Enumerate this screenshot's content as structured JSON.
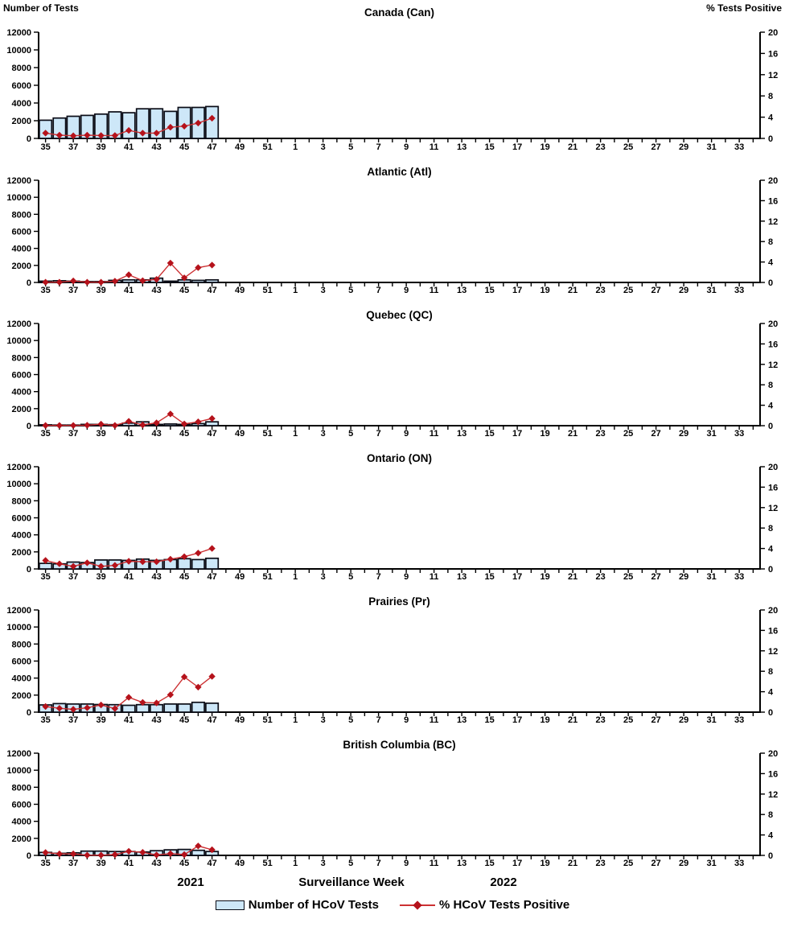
{
  "header": {
    "left_axis_title": "Number of Tests",
    "right_axis_title": "% Tests Positive"
  },
  "footer": {
    "year_left": "2021",
    "x_axis_label": "Surveillance Week",
    "year_right": "2022",
    "legend": [
      {
        "label": "Number of HCoV Tests",
        "type": "bar"
      },
      {
        "label": "% HCoV Tests Positive",
        "type": "line"
      }
    ]
  },
  "colors": {
    "bar_fill": "#cde7f8",
    "bar_border": "#0a0c16",
    "line": "#cc3133",
    "marker": "#b5121b",
    "axis": "#000000"
  },
  "axes": {
    "x": {
      "slots": 52,
      "tick_labels": [
        "35",
        "37",
        "39",
        "41",
        "43",
        "45",
        "47",
        "49",
        "51",
        "1",
        "3",
        "5",
        "7",
        "9",
        "11",
        "13",
        "15",
        "17",
        "19",
        "21",
        "23",
        "25",
        "27",
        "29",
        "31",
        "33"
      ],
      "label_slot_positions": [
        0,
        2,
        4,
        6,
        8,
        10,
        12,
        14,
        16,
        18,
        20,
        22,
        24,
        26,
        28,
        30,
        32,
        34,
        36,
        38,
        40,
        42,
        44,
        46,
        48,
        50
      ]
    },
    "y_left": {
      "min": 0,
      "max": 12000,
      "ticks": [
        0,
        2000,
        4000,
        6000,
        8000,
        10000,
        12000
      ]
    },
    "y_right": {
      "min": 0,
      "max": 20,
      "ticks": [
        0,
        4,
        8,
        12,
        16,
        20
      ]
    }
  },
  "chart_data": [
    {
      "type": "bar",
      "title": "Canada (Can)",
      "weeks": [
        35,
        36,
        37,
        38,
        39,
        40,
        41,
        42,
        43,
        44,
        45,
        46,
        47
      ],
      "series": [
        {
          "name": "Number of HCoV Tests",
          "type": "bar",
          "axis": "left",
          "values": [
            2050,
            2300,
            2500,
            2600,
            2750,
            3000,
            2900,
            3350,
            3350,
            3050,
            3500,
            3500,
            3600
          ]
        },
        {
          "name": "% HCoV Tests Positive",
          "type": "line",
          "axis": "right",
          "values": [
            1.0,
            0.6,
            0.5,
            0.6,
            0.55,
            0.55,
            1.5,
            1.0,
            1.0,
            2.1,
            2.3,
            2.9,
            3.8
          ]
        }
      ]
    },
    {
      "type": "bar",
      "title": "Atlantic (Atl)",
      "weeks": [
        35,
        36,
        37,
        38,
        39,
        40,
        41,
        42,
        43,
        44,
        45,
        46,
        47
      ],
      "series": [
        {
          "name": "Number of HCoV Tests",
          "type": "bar",
          "axis": "left",
          "values": [
            150,
            200,
            150,
            100,
            100,
            250,
            300,
            300,
            500,
            150,
            300,
            250,
            300
          ]
        },
        {
          "name": "% HCoV Tests Positive",
          "type": "line",
          "axis": "right",
          "values": [
            0.05,
            0.05,
            0.3,
            0.05,
            0.05,
            0.25,
            1.5,
            0.35,
            0.6,
            3.8,
            0.9,
            2.9,
            3.4
          ]
        }
      ]
    },
    {
      "type": "bar",
      "title": "Quebec (QC)",
      "weeks": [
        35,
        36,
        37,
        38,
        39,
        40,
        41,
        42,
        43,
        44,
        45,
        46,
        47
      ],
      "series": [
        {
          "name": "Number of HCoV Tests",
          "type": "bar",
          "axis": "left",
          "values": [
            100,
            80,
            80,
            150,
            150,
            120,
            300,
            450,
            150,
            200,
            150,
            250,
            450
          ]
        },
        {
          "name": "% HCoV Tests Positive",
          "type": "line",
          "axis": "right",
          "values": [
            0.05,
            0.05,
            0.05,
            0.1,
            0.3,
            0.05,
            0.85,
            0.15,
            0.55,
            2.3,
            0.35,
            0.75,
            1.4
          ]
        }
      ]
    },
    {
      "type": "bar",
      "title": "Ontario (ON)",
      "weeks": [
        35,
        36,
        37,
        38,
        39,
        40,
        41,
        42,
        43,
        44,
        45,
        46,
        47
      ],
      "series": [
        {
          "name": "Number of HCoV Tests",
          "type": "bar",
          "axis": "left",
          "values": [
            650,
            600,
            800,
            750,
            1050,
            1050,
            1000,
            1150,
            1000,
            1100,
            1200,
            1100,
            1250
          ]
        },
        {
          "name": "% HCoV Tests Positive",
          "type": "line",
          "axis": "right",
          "values": [
            1.65,
            1.0,
            0.5,
            1.2,
            0.5,
            0.7,
            1.5,
            1.4,
            1.4,
            1.9,
            2.4,
            3.1,
            4.0
          ]
        }
      ]
    },
    {
      "type": "bar",
      "title": "Prairies (Pr)",
      "weeks": [
        35,
        36,
        37,
        38,
        39,
        40,
        41,
        42,
        43,
        44,
        45,
        46,
        47
      ],
      "series": [
        {
          "name": "Number of HCoV Tests",
          "type": "bar",
          "axis": "left",
          "values": [
            850,
            1000,
            950,
            950,
            900,
            880,
            800,
            880,
            880,
            950,
            950,
            1150,
            1050
          ]
        },
        {
          "name": "% HCoV Tests Positive",
          "type": "line",
          "axis": "right",
          "values": [
            1.1,
            0.75,
            0.55,
            0.85,
            1.4,
            0.7,
            2.9,
            1.9,
            1.8,
            3.4,
            6.9,
            4.9,
            7.0
          ]
        }
      ]
    },
    {
      "type": "bar",
      "title": "British Columbia (BC)",
      "weeks": [
        35,
        36,
        37,
        38,
        39,
        40,
        41,
        42,
        43,
        44,
        45,
        46,
        47
      ],
      "series": [
        {
          "name": "Number of HCoV Tests",
          "type": "bar",
          "axis": "left",
          "values": [
            350,
            250,
            300,
            500,
            500,
            450,
            450,
            400,
            550,
            650,
            700,
            600,
            450
          ]
        },
        {
          "name": "% HCoV Tests Positive",
          "type": "line",
          "axis": "right",
          "values": [
            0.55,
            0.3,
            0.3,
            0.05,
            0.05,
            0.15,
            0.8,
            0.6,
            0.1,
            0.35,
            0.15,
            1.85,
            1.1
          ]
        }
      ]
    }
  ]
}
